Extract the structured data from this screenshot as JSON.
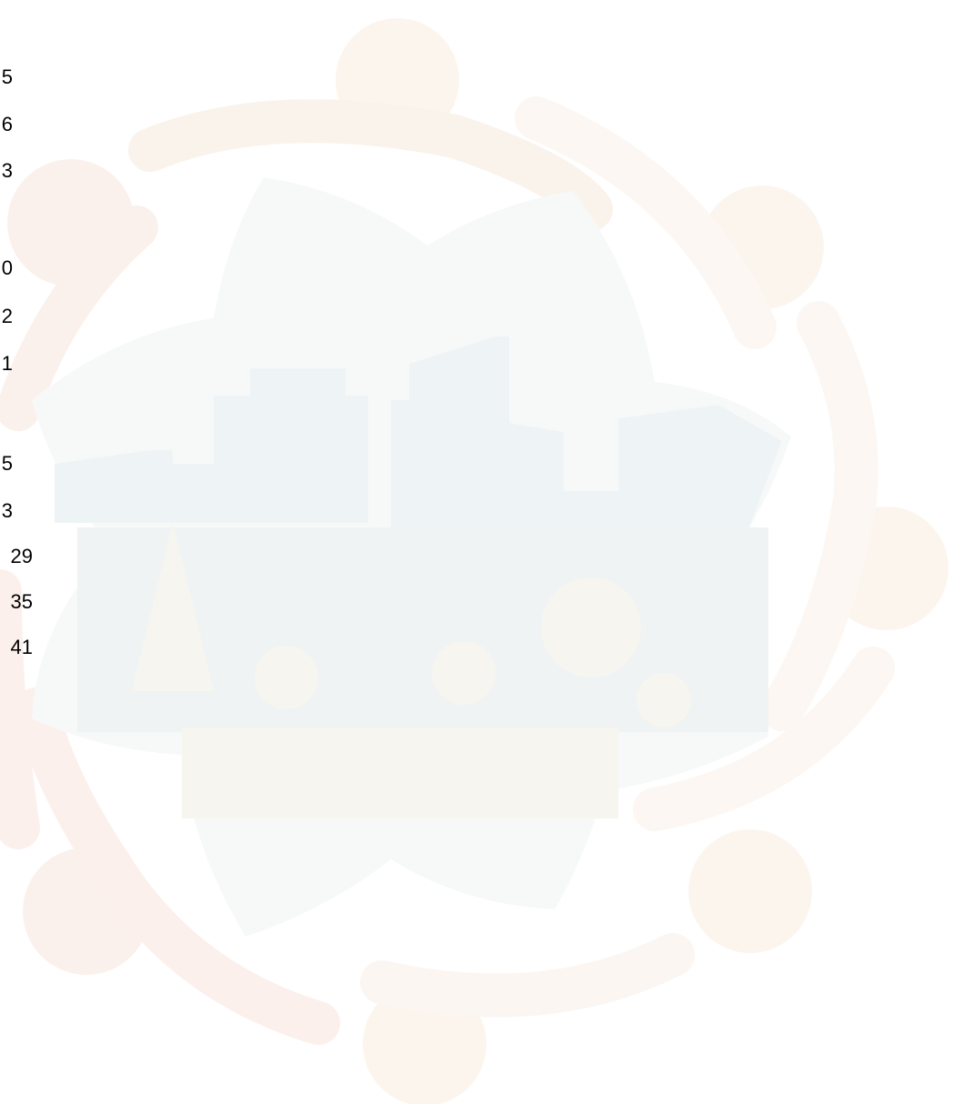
{
  "toc": {
    "page_numbers": [
      "5",
      "6",
      "3",
      "0",
      "2",
      "1",
      "5",
      "3",
      "29",
      "35",
      "41"
    ]
  }
}
